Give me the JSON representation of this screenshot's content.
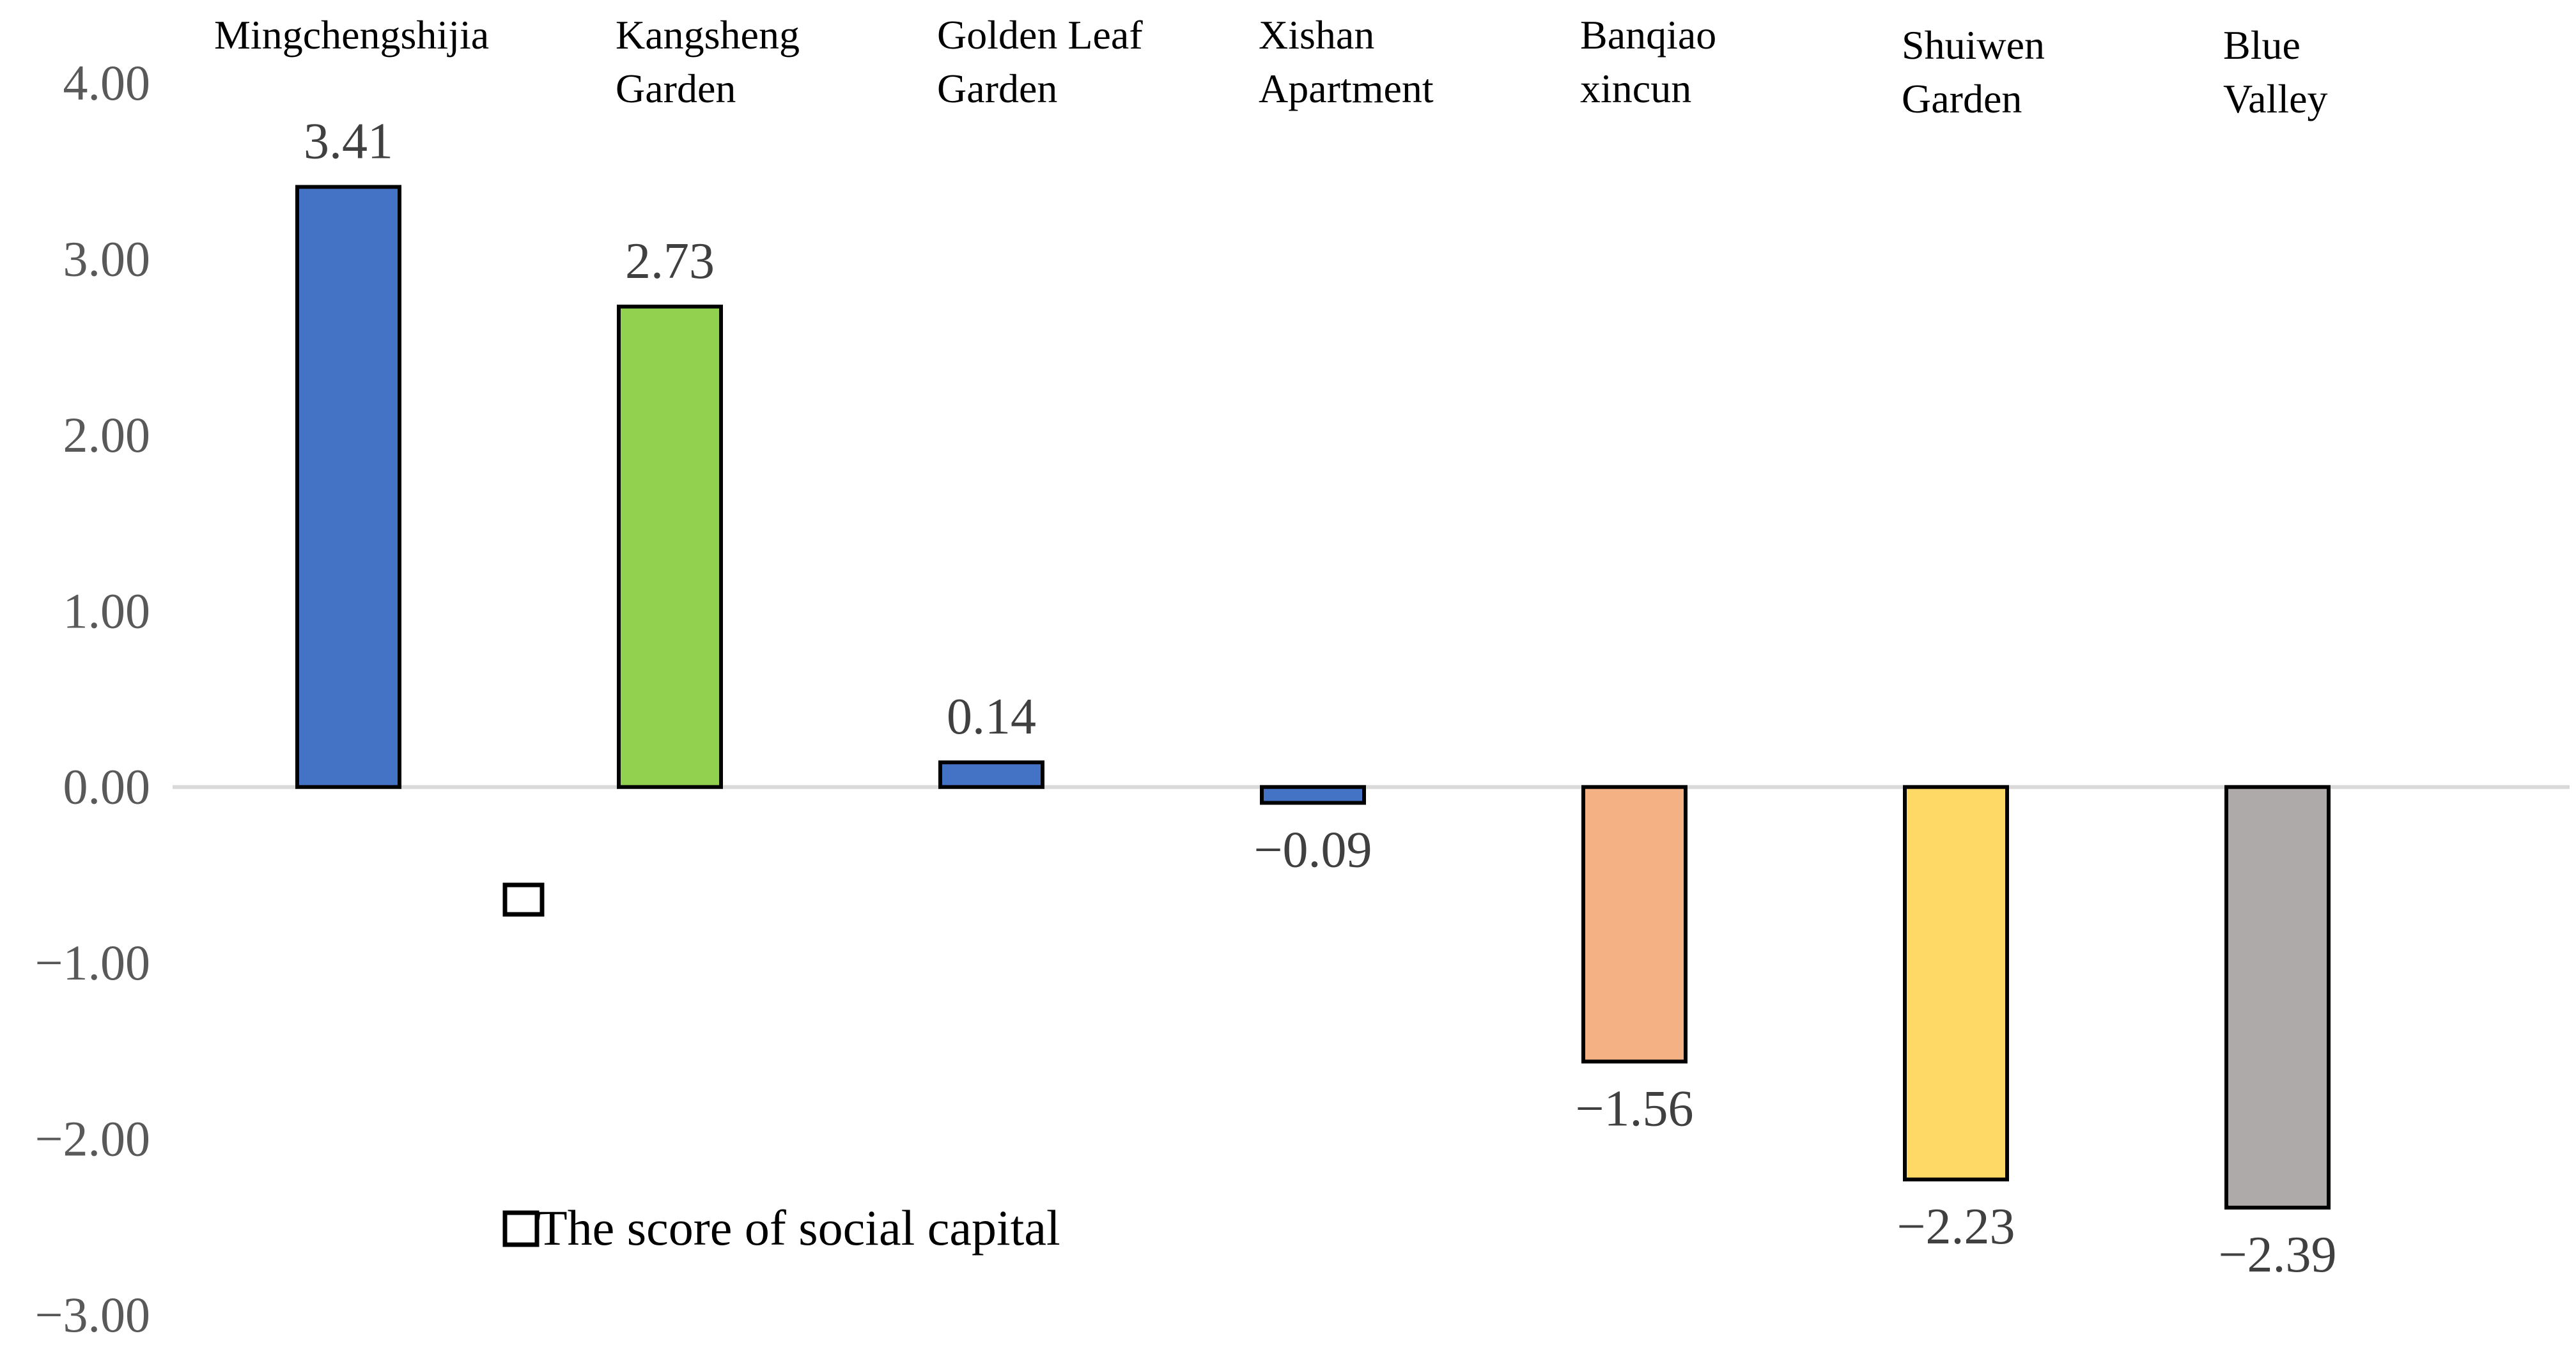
{
  "chart_data": {
    "type": "bar",
    "title": "",
    "xlabel": "",
    "ylabel": "",
    "ylim": [
      -3,
      4
    ],
    "yticks": [
      4,
      3,
      2,
      1,
      0,
      -1,
      -2,
      -3
    ],
    "ytick_labels": [
      "4.00",
      "3.00",
      "2.00",
      "1.00",
      "0.00",
      "−1.00",
      "−2.00",
      "−3.00"
    ],
    "categories": [
      [
        "Mingchengshijia"
      ],
      [
        "Kangsheng",
        "Garden"
      ],
      [
        "Golden Leaf",
        "Garden"
      ],
      [
        "Xishan",
        "Apartment"
      ],
      [
        "Banqiao",
        "xincun"
      ],
      [
        "Shuiwen",
        "Garden"
      ],
      [
        "Blue",
        "Valley"
      ]
    ],
    "values": [
      3.41,
      2.73,
      0.14,
      -0.09,
      -1.56,
      -2.23,
      -2.39
    ],
    "value_labels": [
      "3.41",
      "2.73",
      "0.14",
      "−0.09",
      "−1.56",
      "−2.23",
      "−2.39"
    ],
    "colors": [
      "#4472c4",
      "#92d050",
      "#4472c4",
      "#4472c4",
      "#f4b183",
      "#ffd966",
      "#aeaaaa"
    ],
    "grid": false,
    "legend": {
      "position": "bottom-left",
      "entries": [
        "The score of social capital"
      ]
    }
  }
}
